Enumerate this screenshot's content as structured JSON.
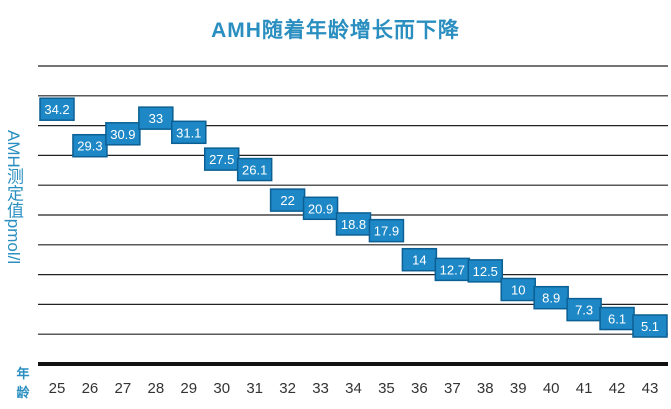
{
  "chart_data": {
    "type": "line",
    "title": "AMH随着年龄增长而下降",
    "ylabel": "AMH测定值pmol/l",
    "xlabel": "年龄",
    "x": [
      25,
      26,
      27,
      28,
      29,
      30,
      31,
      32,
      33,
      34,
      35,
      36,
      37,
      38,
      39,
      40,
      41,
      42,
      43
    ],
    "values": [
      34.2,
      29.3,
      30.9,
      33,
      31.1,
      27.5,
      26.1,
      22,
      20.9,
      18.8,
      17.9,
      14,
      12.7,
      12.5,
      10,
      8.9,
      7.3,
      6.1,
      5.1
    ],
    "value_labels": [
      "34.2",
      "29.3",
      "30.9",
      "33",
      "31.1",
      "27.5",
      "26.1",
      "22",
      "20.9",
      "18.8",
      "17.9",
      "14",
      "12.7",
      "12.5",
      "10",
      "8.9",
      "7.3",
      "6.1",
      "5.1"
    ],
    "x_tick_labels": [
      "25",
      "26",
      "27",
      "28",
      "29",
      "30",
      "31",
      "32",
      "33",
      "34",
      "35",
      "36",
      "37",
      "38",
      "39",
      "40",
      "41",
      "42",
      "43"
    ],
    "ylim": [
      0,
      40
    ],
    "grid": true,
    "colors": {
      "title": "#2a8fc0",
      "marker": "#1e88c7",
      "marker_border": "#0b5f93",
      "marker_text": "#ffffff",
      "grid": "#222222",
      "tick_text": "#333333"
    }
  }
}
